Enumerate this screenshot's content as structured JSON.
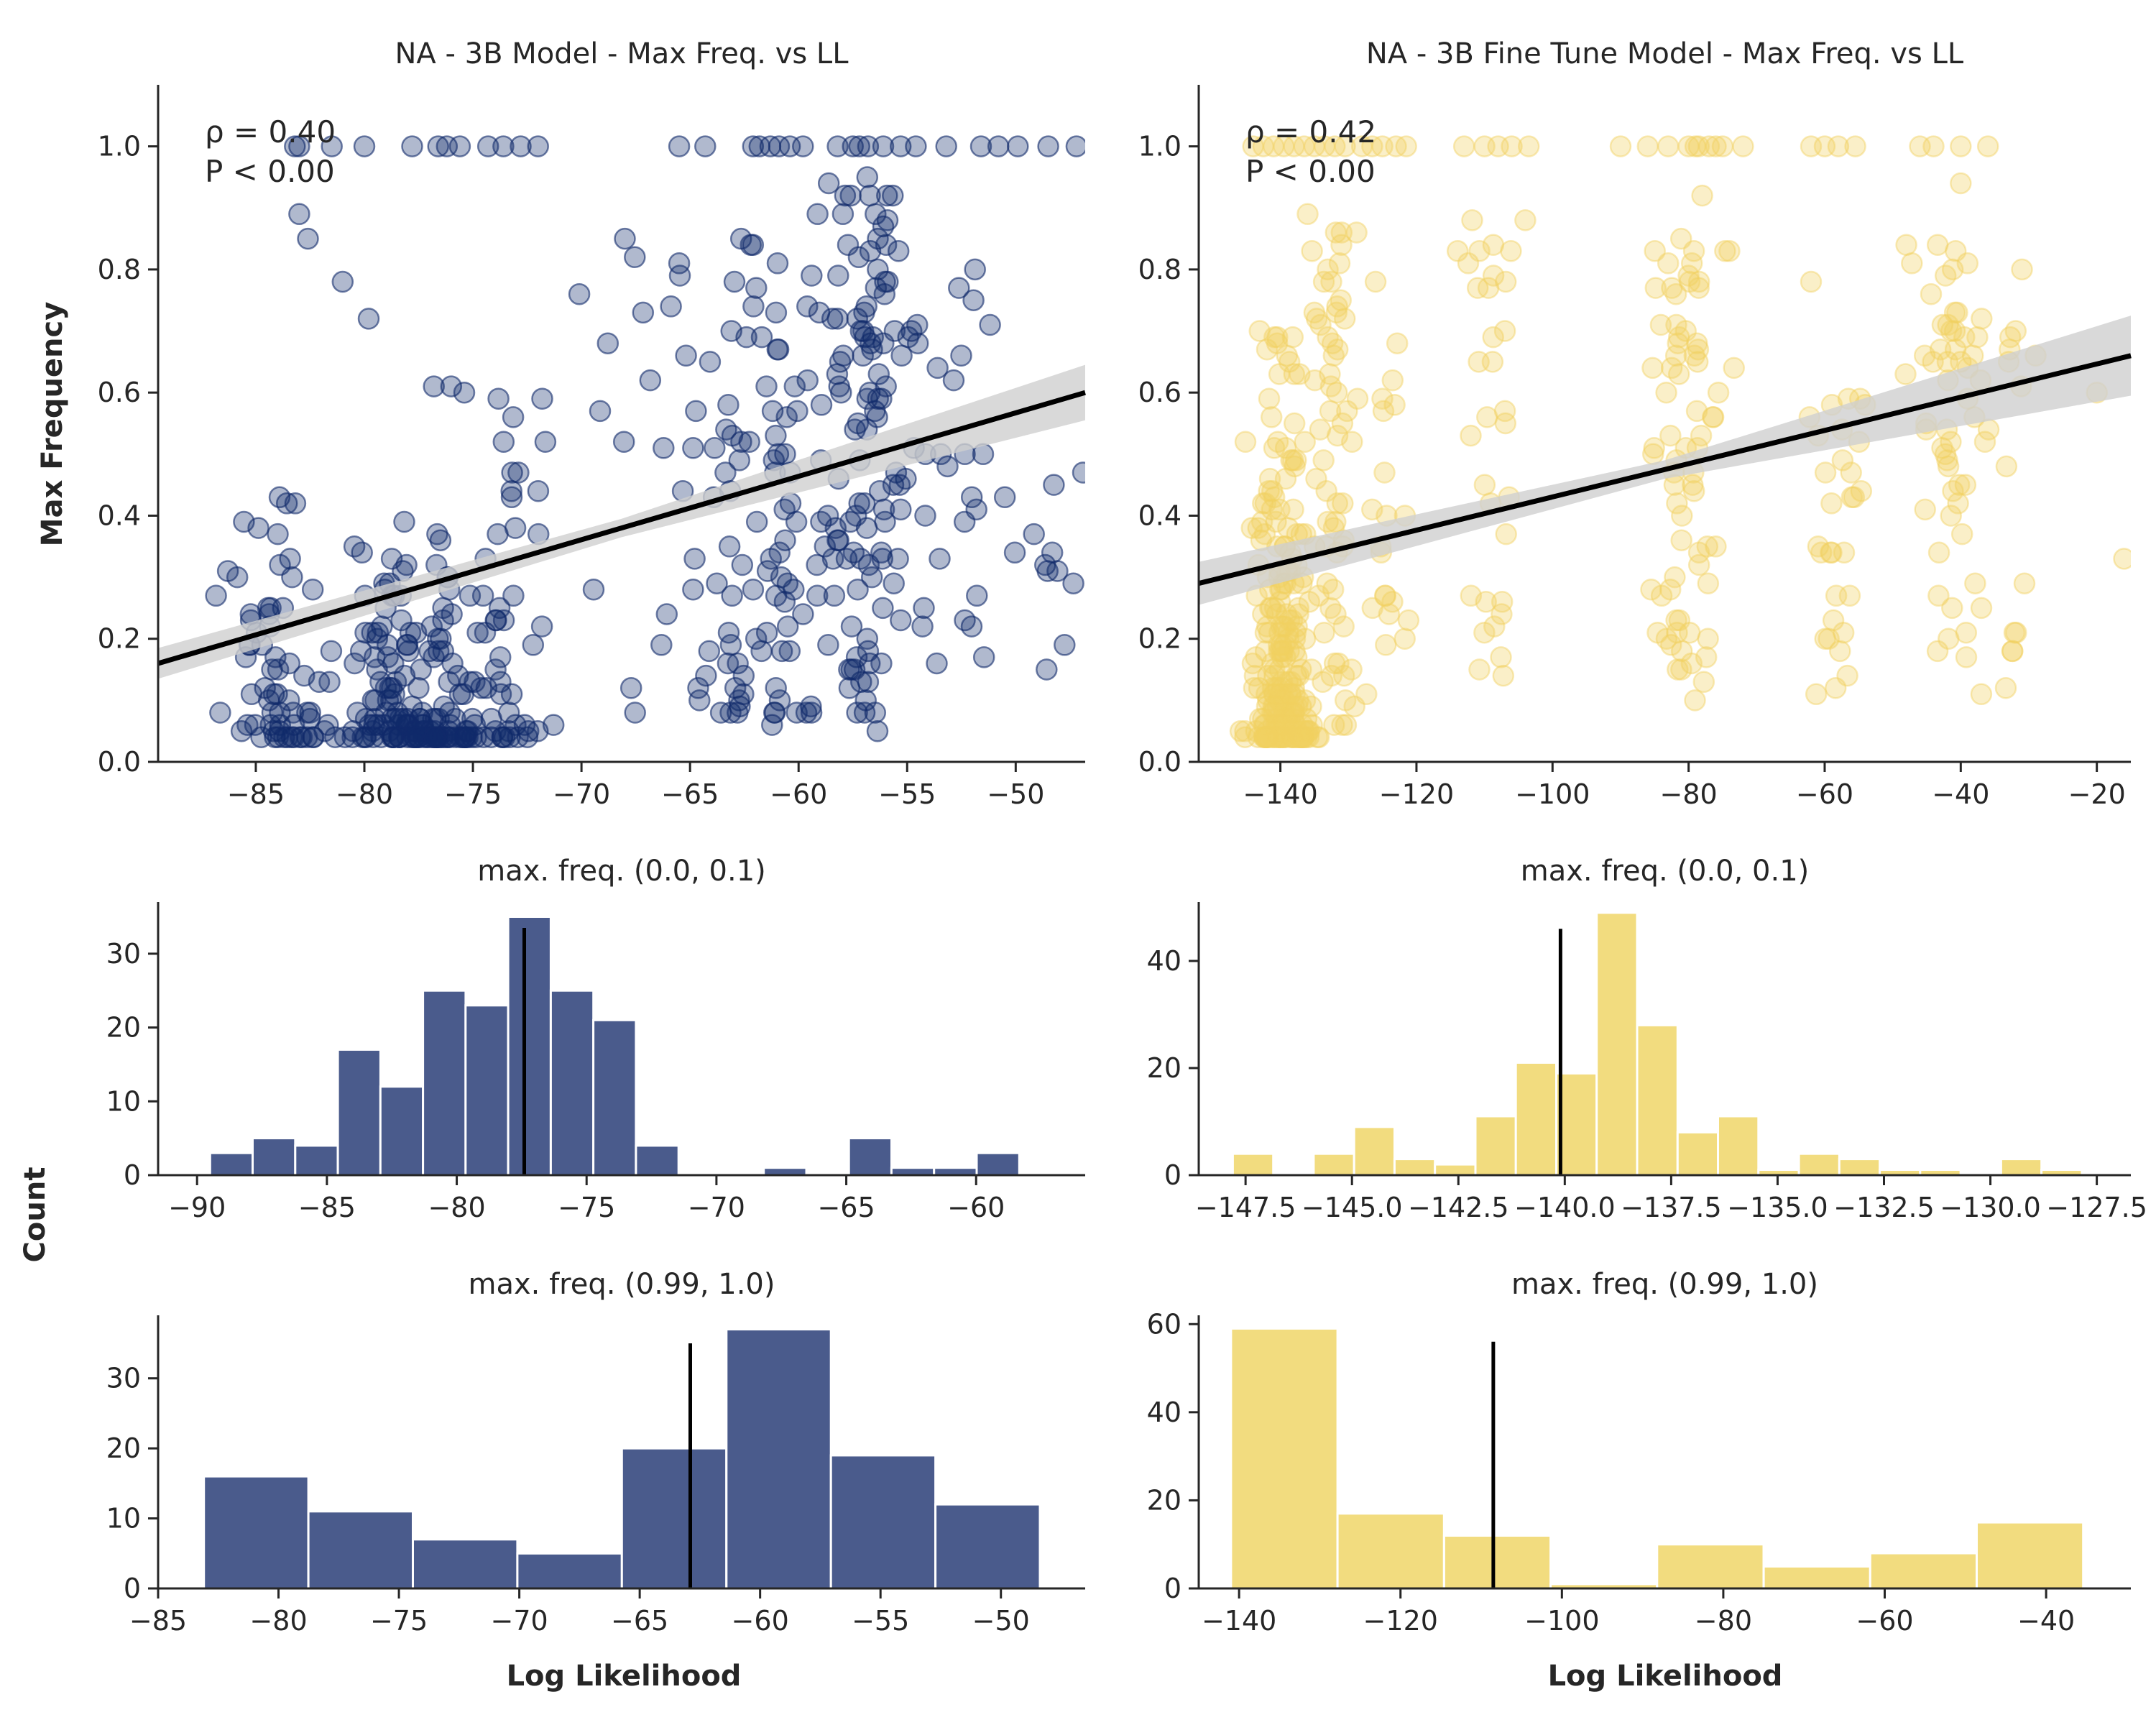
{
  "figure": {
    "ylabel_top": "Max Frequency",
    "ylabel_bottom": "Count",
    "xlabel": "Log Likelihood"
  },
  "colors": {
    "navy": "#102a6b",
    "navy_bar": "#4a5b8c",
    "gold": "#f2d060",
    "gold_bar": "#f2dc7f",
    "fit": "#000000",
    "ci": "#cfcfcf"
  },
  "chart_data": [
    {
      "type": "scatter",
      "title": "NA - 3B Model - Max Freq. vs LL",
      "color_key": "navy",
      "stats": [
        "ρ = 0.40",
        "P < 0.00"
      ],
      "xlim": [
        -89.5,
        -46.8
      ],
      "ylim": [
        0,
        1.1
      ],
      "xticks": [
        -85,
        -80,
        -75,
        -70,
        -65,
        -60,
        -55,
        -50
      ],
      "yticks": [
        0.0,
        0.2,
        0.4,
        0.6,
        0.8,
        1.0
      ],
      "fit": {
        "x0": -89.5,
        "y0": 0.16,
        "x1": -46.8,
        "y1": 0.6,
        "ci0": 0.025,
        "ci1": 0.045
      },
      "clusters": [
        {
          "xc": -84,
          "xs": 1.8,
          "n": 70,
          "ymin": 0.04,
          "ymax": 0.45,
          "ymode": 0.15,
          "yskew": 2.6
        },
        {
          "xc": -79,
          "xs": 1.2,
          "n": 60,
          "ymin": 0.04,
          "ymax": 0.35,
          "ymode": 0.1,
          "yskew": 3
        },
        {
          "xc": -76.5,
          "xs": 1.6,
          "n": 110,
          "ymin": 0.04,
          "ymax": 0.4,
          "ymode": 0.1,
          "yskew": 3.5
        },
        {
          "xc": -73,
          "xs": 1.2,
          "n": 40,
          "ymin": 0.04,
          "ymax": 0.6,
          "ymode": 0.1,
          "yskew": 2
        },
        {
          "xc": -67,
          "xs": 2.5,
          "n": 18,
          "ymin": 0.05,
          "ymax": 0.85,
          "ymode": 0.3,
          "yskew": 1.2
        },
        {
          "xc": -62,
          "xs": 2.0,
          "n": 90,
          "ymin": 0.05,
          "ymax": 0.85,
          "ymode": 0.2,
          "yskew": 1.3
        },
        {
          "xc": -57,
          "xs": 1.6,
          "n": 110,
          "ymin": 0.05,
          "ymax": 0.95,
          "ymode": 0.25,
          "yskew": 1.2
        },
        {
          "xc": -53,
          "xs": 2.0,
          "n": 25,
          "ymin": 0.1,
          "ymax": 0.8,
          "ymode": 0.3,
          "yskew": 1
        },
        {
          "xc": -49,
          "xs": 1.6,
          "n": 10,
          "ymin": 0.1,
          "ymax": 0.5,
          "ymode": 0.3,
          "yskew": 1
        }
      ],
      "top_row_x": [
        -83.2,
        -83,
        -81.5,
        -80,
        -77.8,
        -76.6,
        -76.2,
        -75.6,
        -74.3,
        -73.6,
        -72.8,
        -72,
        -65.5,
        -64.3,
        -62.1,
        -61.8,
        -61.3,
        -60.9,
        -60.4,
        -59.8,
        -58.2,
        -57.5,
        -57.2,
        -56.8,
        -56.1,
        -55.3,
        -54.6,
        -53.2,
        -51.6,
        -50.8,
        -49.9,
        -48.5,
        -47.2
      ],
      "extra_points": [
        [
          -83,
          0.89
        ],
        [
          -82.6,
          0.85
        ],
        [
          -81,
          0.78
        ],
        [
          -79.8,
          0.72
        ],
        [
          -76.8,
          0.61
        ],
        [
          -76,
          0.61
        ],
        [
          -75.4,
          0.6
        ],
        [
          -70.1,
          0.76
        ],
        [
          -68,
          0.85
        ],
        [
          -65.5,
          0.81
        ],
        [
          -62.1,
          0.84
        ],
        [
          -59.6,
          0.74
        ],
        [
          -57.3,
          0.72
        ],
        [
          -56.1,
          0.87
        ],
        [
          -55.4,
          0.83
        ],
        [
          -54.8,
          0.7
        ],
        [
          -53.6,
          0.64
        ],
        [
          -46.9,
          0.47
        ],
        [
          -50.5,
          0.43
        ]
      ]
    },
    {
      "type": "scatter",
      "title": "NA - 3B Fine Tune Model - Max Freq. vs LL",
      "color_key": "gold",
      "stats": [
        "ρ = 0.42",
        "P < 0.00"
      ],
      "xlim": [
        -152,
        -15
      ],
      "ylim": [
        0,
        1.1
      ],
      "xticks": [
        -140,
        -120,
        -100,
        -80,
        -60,
        -40,
        -20
      ],
      "yticks": [
        0.0,
        0.2,
        0.4,
        0.6,
        0.8,
        1.0
      ],
      "fit": {
        "x0": -152,
        "y0": 0.29,
        "x1": -15,
        "y1": 0.66,
        "ci0": 0.035,
        "ci1": 0.065
      },
      "clusters": [
        {
          "xc": -140,
          "xs": 3.2,
          "n": 230,
          "ymin": 0.04,
          "ymax": 0.7,
          "ymode": 0.12,
          "yskew": 2.6
        },
        {
          "xc": -132,
          "xs": 2.5,
          "n": 60,
          "ymin": 0.05,
          "ymax": 0.9,
          "ymode": 0.3,
          "yskew": 1.3
        },
        {
          "xc": -124,
          "xs": 2.5,
          "n": 20,
          "ymin": 0.1,
          "ymax": 0.7,
          "ymode": 0.3,
          "yskew": 1
        },
        {
          "xc": -109,
          "xs": 3,
          "n": 30,
          "ymin": 0.12,
          "ymax": 0.9,
          "ymode": 0.3,
          "yskew": 1
        },
        {
          "xc": -80,
          "xs": 4,
          "n": 70,
          "ymin": 0.1,
          "ymax": 0.85,
          "ymode": 0.3,
          "yskew": 1
        },
        {
          "xc": -58,
          "xs": 3,
          "n": 30,
          "ymin": 0.1,
          "ymax": 0.6,
          "ymode": 0.3,
          "yskew": 1
        },
        {
          "xc": -42,
          "xs": 4,
          "n": 55,
          "ymin": 0.1,
          "ymax": 0.85,
          "ymode": 0.25,
          "yskew": 1.1
        },
        {
          "xc": -32,
          "xs": 1.5,
          "n": 12,
          "ymin": 0.12,
          "ymax": 0.82,
          "ymode": 0.3,
          "yskew": 1
        }
      ],
      "top_row_x": [
        -144,
        -142.5,
        -141,
        -139.5,
        -138,
        -136.5,
        -135,
        -133.5,
        -132,
        -130.5,
        -128,
        -126.5,
        -125,
        -123,
        -121.5,
        -113,
        -110,
        -108,
        -106,
        -103.5,
        -90,
        -86,
        -83,
        -80,
        -79,
        -78.5,
        -77,
        -76,
        -75,
        -72,
        -62,
        -60,
        -58,
        -55.5,
        -46,
        -44,
        -40,
        -36
      ],
      "extra_points": [
        [
          -136,
          0.89
        ],
        [
          -131,
          0.86
        ],
        [
          -126,
          0.78
        ],
        [
          -111,
          0.77
        ],
        [
          -104,
          0.88
        ],
        [
          -83,
          0.81
        ],
        [
          -78,
          0.92
        ],
        [
          -74,
          0.83
        ],
        [
          -62,
          0.78
        ],
        [
          -48,
          0.84
        ],
        [
          -40,
          0.94
        ],
        [
          -40,
          0.65
        ],
        [
          -31,
          0.8
        ],
        [
          -29,
          0.66
        ],
        [
          -16,
          0.33
        ],
        [
          -20,
          0.6
        ]
      ]
    },
    {
      "type": "bar",
      "title": "max. freq. (0.0, 0.1)",
      "color_key": "navy_bar",
      "xlim": [
        -91.5,
        -55.8
      ],
      "ylim": [
        0,
        37
      ],
      "xticks": [
        -90,
        -85,
        -80,
        -75,
        -70,
        -65,
        -60
      ],
      "yticks": [
        0,
        10,
        20,
        30
      ],
      "bin_start": -89.5,
      "bin_width": 1.64,
      "values": [
        3,
        5,
        4,
        17,
        12,
        25,
        23,
        35,
        25,
        21,
        4,
        0,
        0,
        1,
        0,
        5,
        1,
        1,
        3
      ],
      "vline": -77.4,
      "vline_top": 33.5
    },
    {
      "type": "bar",
      "title": "max. freq. (0.0, 0.1)",
      "color_key": "gold_bar",
      "xlim": [
        -148.6,
        -126.7
      ],
      "ylim": [
        0,
        51
      ],
      "xticks": [
        -147.5,
        -145.0,
        -142.5,
        -140.0,
        -137.5,
        -135.0,
        -132.5,
        -130.0,
        -127.5
      ],
      "yticks": [
        0,
        20,
        40
      ],
      "bin_start": -147.8,
      "bin_width": 0.95,
      "values": [
        4,
        0,
        4,
        9,
        3,
        2,
        11,
        21,
        19,
        49,
        28,
        8,
        11,
        1,
        4,
        3,
        1,
        1,
        0,
        3,
        1,
        0,
        0,
        1,
        0,
        1
      ],
      "vline": -140.1,
      "vline_top": 46
    },
    {
      "type": "bar",
      "title": "max. freq. (0.99, 1.0)",
      "color_key": "navy_bar",
      "xlim": [
        -85,
        -46.5
      ],
      "ylim": [
        0,
        39
      ],
      "xticks": [
        -85,
        -80,
        -75,
        -70,
        -65,
        -60,
        -55,
        -50
      ],
      "yticks": [
        0,
        10,
        20,
        30
      ],
      "bin_start": -83.1,
      "bin_width": 4.34,
      "values": [
        16,
        11,
        7,
        5,
        20,
        37,
        19,
        12
      ],
      "vline": -62.9,
      "vline_top": 35
    },
    {
      "type": "bar",
      "title": "max. freq. (0.99, 1.0)",
      "color_key": "gold_bar",
      "xlim": [
        -145,
        -29.5
      ],
      "ylim": [
        0,
        62
      ],
      "xticks": [
        -140,
        -120,
        -100,
        -80,
        -60,
        -40
      ],
      "yticks": [
        0,
        20,
        40,
        60
      ],
      "bin_start": -141,
      "bin_width": 13.2,
      "values": [
        59,
        17,
        12,
        1,
        10,
        5,
        8,
        15
      ],
      "vline": -108.5,
      "vline_top": 56
    }
  ]
}
